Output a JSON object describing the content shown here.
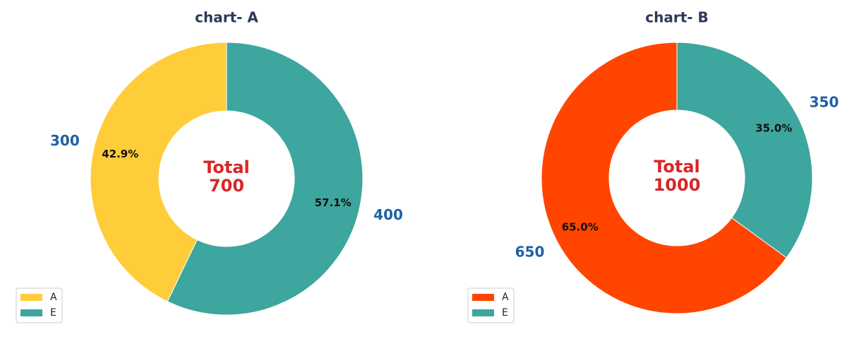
{
  "chart_data": [
    {
      "type": "pie",
      "style": "donut",
      "title": "chart- A",
      "categories": [
        "A",
        "E"
      ],
      "values": [
        300,
        400
      ],
      "percent_labels": [
        "42.9%",
        "57.1%"
      ],
      "value_labels": [
        "300",
        "400"
      ],
      "center_label": [
        "Total",
        "700"
      ],
      "colors": [
        "#ffcc3a",
        "#3da69e"
      ],
      "legend": {
        "placement": "lower-left",
        "entries": [
          "A",
          "E"
        ]
      }
    },
    {
      "type": "pie",
      "style": "donut",
      "title": "chart- B",
      "categories": [
        "A",
        "E"
      ],
      "values": [
        650,
        350
      ],
      "percent_labels": [
        "65.0%",
        "35.0%"
      ],
      "value_labels": [
        "650",
        "350"
      ],
      "center_label": [
        "Total",
        "1000"
      ],
      "colors": [
        "#ff4500",
        "#3da69e"
      ],
      "legend": {
        "placement": "lower-left",
        "entries": [
          "A",
          "E"
        ]
      }
    }
  ]
}
